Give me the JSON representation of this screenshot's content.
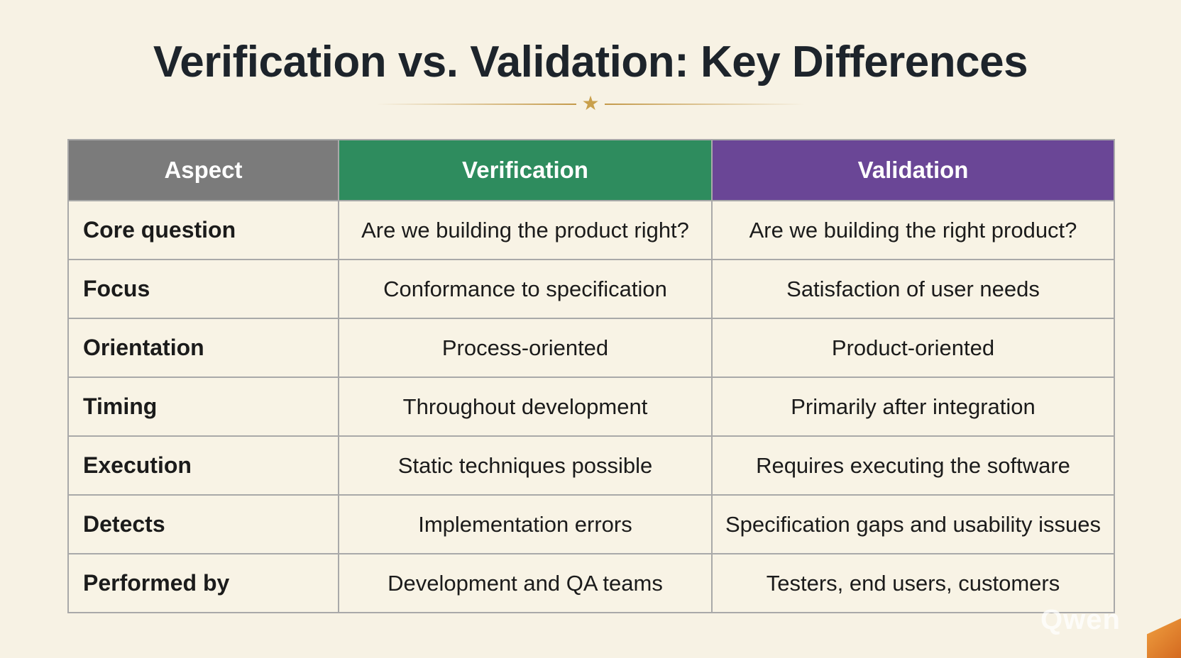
{
  "title": "Verification vs. Validation: Key Differences",
  "colors": {
    "background": "#f7f2e4",
    "aspect_header": "#7b7b7b",
    "verification_header": "#2e8c5e",
    "validation_header": "#6a4696",
    "divider_accent": "#c9a04c"
  },
  "divider_icon": "star-icon",
  "table": {
    "headers": [
      "Aspect",
      "Verification",
      "Validation"
    ],
    "rows": [
      [
        "Core question",
        "Are we building the product right?",
        "Are we building the right product?"
      ],
      [
        "Focus",
        "Conformance to specification",
        "Satisfaction of user needs"
      ],
      [
        "Orientation",
        "Process-oriented",
        "Product-oriented"
      ],
      [
        "Timing",
        "Throughout development",
        "Primarily after integration"
      ],
      [
        "Execution",
        "Static techniques possible",
        "Requires executing the software"
      ],
      [
        "Detects",
        "Implementation errors",
        "Specification gaps and usability issues"
      ],
      [
        "Performed by",
        "Development and QA teams",
        "Testers, end users, customers"
      ]
    ]
  },
  "watermark": "Qwen"
}
